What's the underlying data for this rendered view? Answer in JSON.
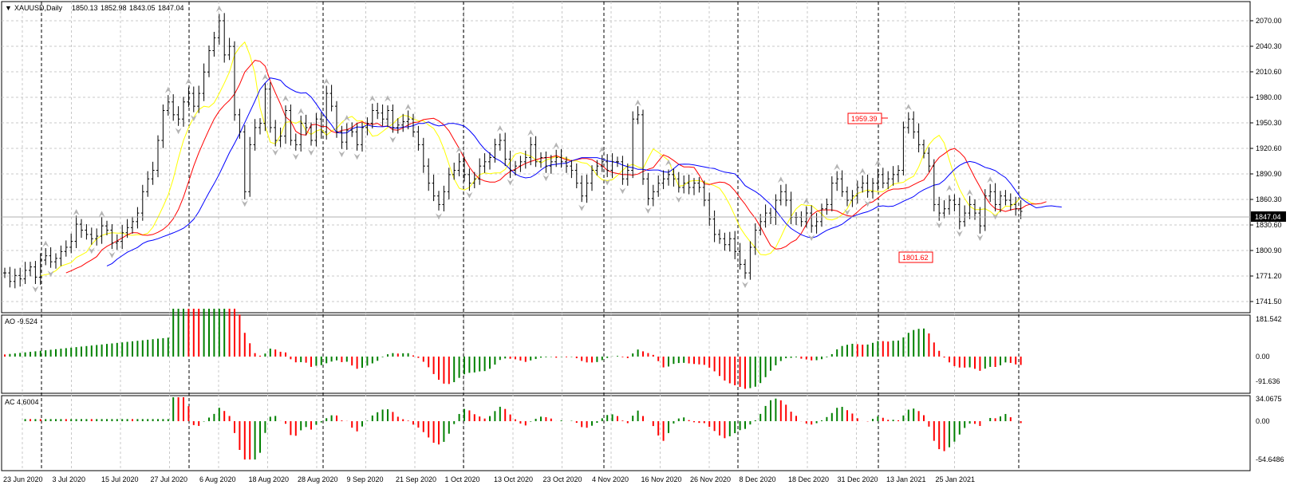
{
  "header": {
    "symbol": "XAUUSD,Daily",
    "open": "1850.13",
    "high": "1852.98",
    "low": "1843.05",
    "close": "1847.04"
  },
  "colors": {
    "background": "#ffffff",
    "grid": "#c8c8c8",
    "bars": "#000000",
    "ma_yellow": "#ffff00",
    "ma_red": "#ff0000",
    "ma_blue": "#0000ff",
    "hist_up": "#008000",
    "hist_down": "#ff0000",
    "price_label_bg": "#000000",
    "annotation": "#ff0000"
  },
  "main_panel": {
    "price_ticks": [
      "2070.00",
      "2040.30",
      "2010.60",
      "1980.00",
      "1950.30",
      "1920.60",
      "1890.90",
      "1860.30",
      "1830.60",
      "1800.90",
      "1771.20",
      "1741.50"
    ],
    "current_price_label": "1847.04",
    "high_annotation": "1959.39",
    "low_annotation": "1801.62"
  },
  "ao_panel": {
    "label": "AO -9.524",
    "ticks": [
      "181.542",
      "0.00",
      "-91.636"
    ]
  },
  "ac_panel": {
    "label": "AC 4.6004",
    "ticks": [
      "34.0675",
      "0.00",
      "-54.6486"
    ]
  },
  "date_labels": [
    "23 Jun 2020",
    "3 Jul 2020",
    "15 Jul 2020",
    "27 Jul 2020",
    "6 Aug 2020",
    "18 Aug 2020",
    "28 Aug 2020",
    "9 Sep 2020",
    "21 Sep 2020",
    "1 Oct 2020",
    "13 Oct 2020",
    "23 Oct 2020",
    "4 Nov 2020",
    "16 Nov 2020",
    "26 Nov 2020",
    "8 Dec 2020",
    "18 Dec 2020",
    "31 Dec 2020",
    "13 Jan 2021",
    "25 Jan 2021"
  ],
  "chart_data": {
    "type": "ohlc",
    "title": "XAUUSD,Daily",
    "ylim": [
      1741.5,
      2085
    ],
    "closes": [
      1775,
      1765,
      1772,
      1768,
      1778,
      1782,
      1770,
      1790,
      1795,
      1788,
      1792,
      1800,
      1805,
      1812,
      1832,
      1825,
      1820,
      1815,
      1818,
      1830,
      1825,
      1810,
      1812,
      1822,
      1828,
      1835,
      1845,
      1870,
      1885,
      1895,
      1930,
      1965,
      1975,
      1960,
      1955,
      1975,
      1985,
      1970,
      1985,
      2010,
      2035,
      2050,
      2070,
      2030,
      2040,
      1960,
      1940,
      1870,
      1925,
      1945,
      1950,
      1990,
      1945,
      1930,
      1935,
      1965,
      1930,
      1925,
      1950,
      1945,
      1930,
      1955,
      1940,
      1985,
      1970,
      1940,
      1928,
      1942,
      1940,
      1925,
      1945,
      1950,
      1965,
      1962,
      1955,
      1965,
      1945,
      1948,
      1952,
      1955,
      1940,
      1925,
      1900,
      1880,
      1865,
      1855,
      1870,
      1890,
      1895,
      1905,
      1890,
      1880,
      1885,
      1900,
      1905,
      1910,
      1925,
      1930,
      1908,
      1895,
      1900,
      1905,
      1910,
      1925,
      1905,
      1910,
      1900,
      1905,
      1910,
      1905,
      1900,
      1895,
      1880,
      1865,
      1880,
      1895,
      1900,
      1905,
      1895,
      1905,
      1905,
      1885,
      1895,
      1955,
      1960,
      1885,
      1862,
      1870,
      1880,
      1885,
      1890,
      1885,
      1875,
      1880,
      1875,
      1880,
      1875,
      1860,
      1838,
      1820,
      1815,
      1808,
      1815,
      1800,
      1785,
      1775,
      1805,
      1825,
      1835,
      1845,
      1840,
      1860,
      1870,
      1860,
      1840,
      1840,
      1835,
      1845,
      1830,
      1835,
      1850,
      1855,
      1880,
      1885,
      1870,
      1860,
      1865,
      1875,
      1880,
      1870,
      1880,
      1890,
      1880,
      1885,
      1890,
      1895,
      1945,
      1955,
      1940,
      1925,
      1915,
      1900,
      1855,
      1845,
      1850,
      1860,
      1855,
      1835,
      1845,
      1855,
      1845,
      1830,
      1865,
      1870,
      1855,
      1865,
      1860,
      1855,
      1850,
      1847
    ]
  }
}
